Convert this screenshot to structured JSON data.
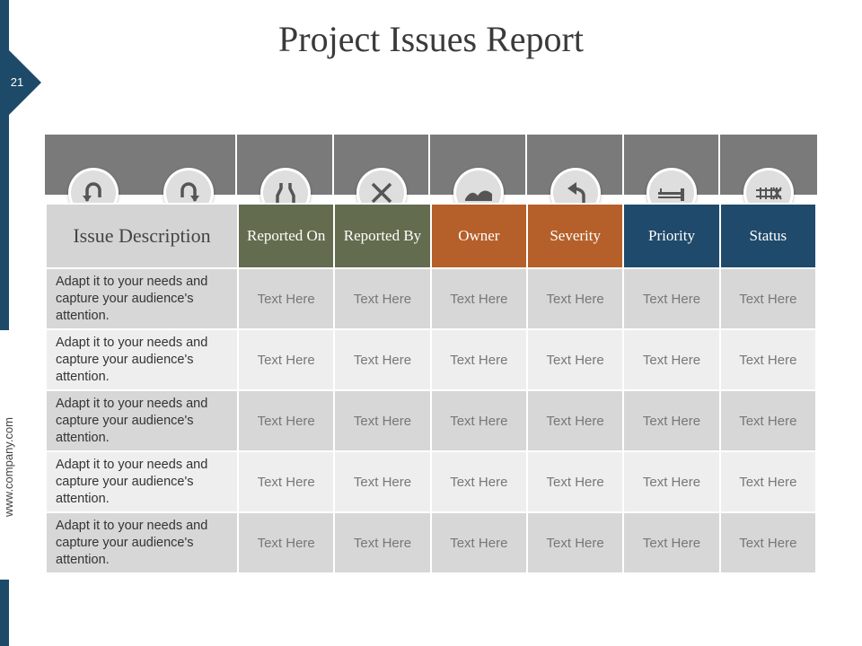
{
  "slide": {
    "title": "Project Issues Report",
    "page_number": "21",
    "website": "www.company.com"
  },
  "colors": {
    "sidebar": "#1e4a6a",
    "band": "#7a7a7a",
    "green_header": "#636c4e",
    "orange_header": "#b5602a",
    "blue_header": "#1f4a6b"
  },
  "table": {
    "headers": {
      "issue_description": "Issue Description",
      "reported_on": "Reported On",
      "reported_by": "Reported By",
      "owner": "Owner",
      "severity": "Severity",
      "priority": "Priority",
      "status": "Status"
    },
    "icons": [
      "u-turn-left-icon",
      "u-turn-right-icon",
      "road-merge-icon",
      "cross-icon",
      "bumpy-road-icon",
      "turn-left-arrow-icon",
      "barrier-icon",
      "railway-crossing-icon"
    ],
    "rows": [
      {
        "desc": "Adapt it to your needs and capture your audience's attention.",
        "reported_on": "Text Here",
        "reported_by": "Text Here",
        "owner": "Text Here",
        "severity": "Text Here",
        "priority": "Text Here",
        "status": "Text Here"
      },
      {
        "desc": "Adapt it to your needs and capture your audience's attention.",
        "reported_on": "Text Here",
        "reported_by": "Text Here",
        "owner": "Text Here",
        "severity": "Text Here",
        "priority": "Text Here",
        "status": "Text Here"
      },
      {
        "desc": "Adapt it to your needs and capture your audience's attention.",
        "reported_on": "Text Here",
        "reported_by": "Text Here",
        "owner": "Text Here",
        "severity": "Text Here",
        "priority": "Text Here",
        "status": "Text Here"
      },
      {
        "desc": "Adapt it to your needs and capture your audience's attention.",
        "reported_on": "Text Here",
        "reported_by": "Text Here",
        "owner": "Text Here",
        "severity": "Text Here",
        "priority": "Text Here",
        "status": "Text Here"
      },
      {
        "desc": "Adapt it to your needs and capture your audience's attention.",
        "reported_on": "Text Here",
        "reported_by": "Text Here",
        "owner": "Text Here",
        "severity": "Text Here",
        "priority": "Text Here",
        "status": "Text Here"
      }
    ]
  }
}
